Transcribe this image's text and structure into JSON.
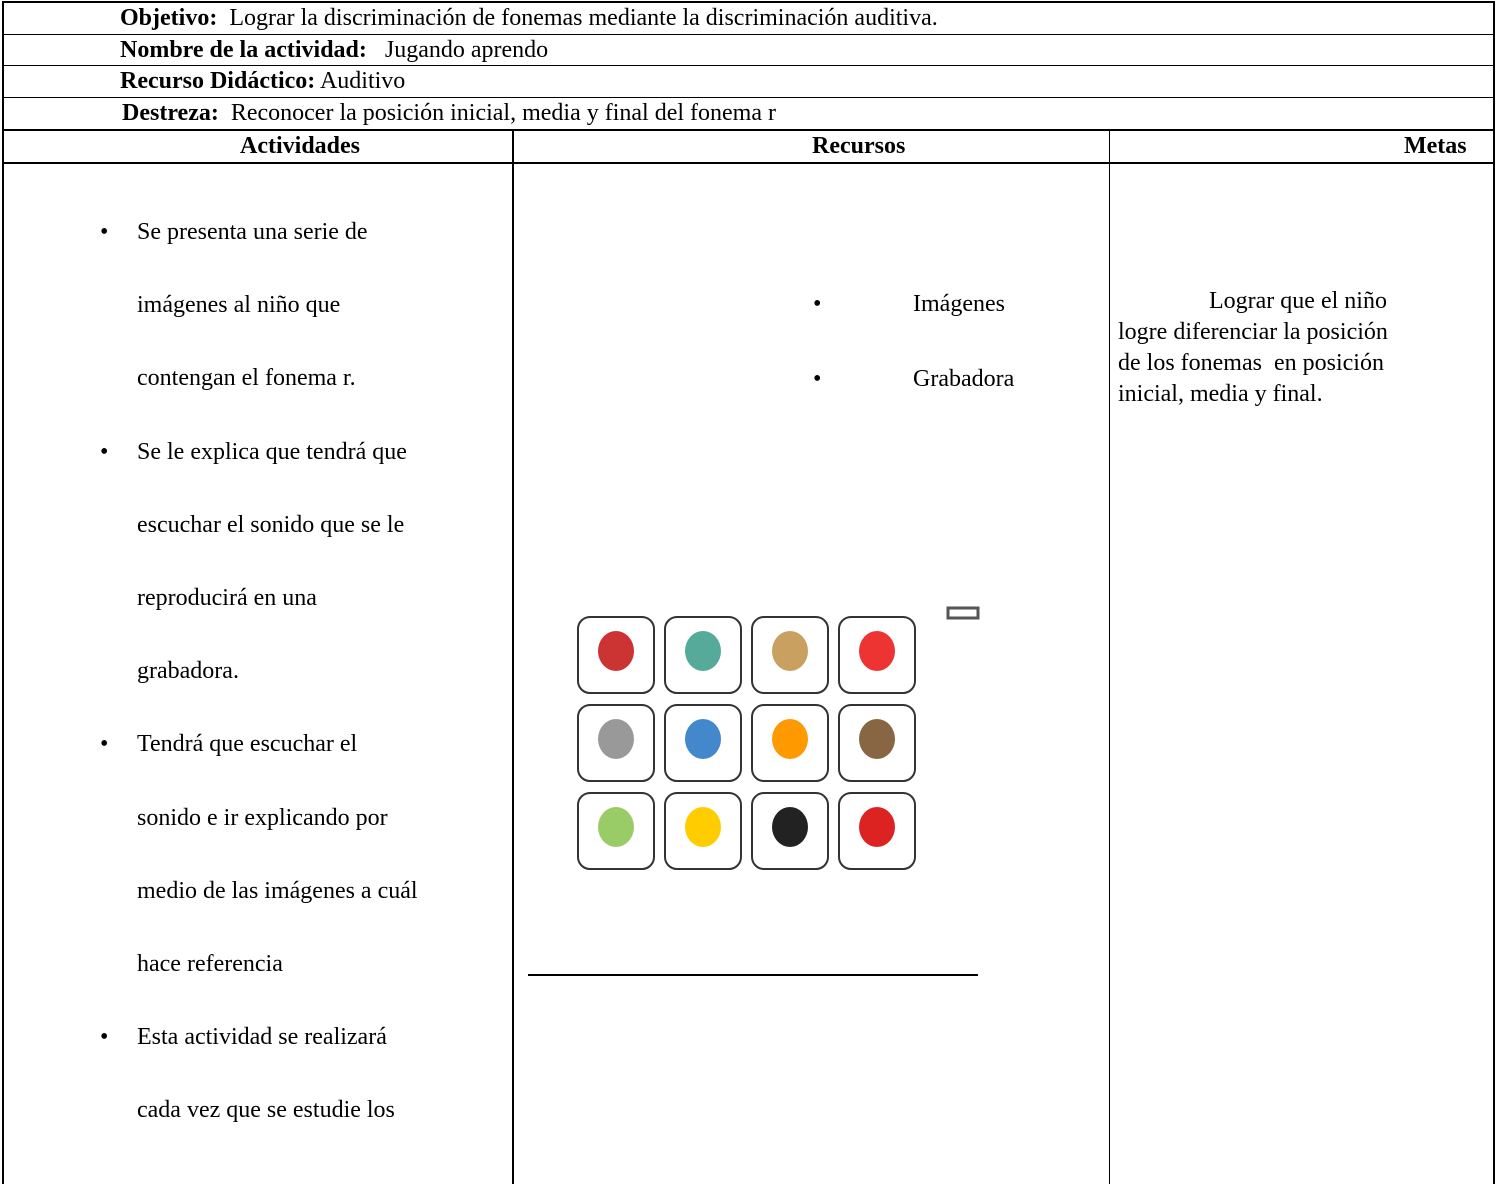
{
  "header": {
    "objetivo": {
      "label": "Objetivo:",
      "text": "Lograr la discriminación de fonemas mediante la discriminación auditiva."
    },
    "nombre": {
      "label": "Nombre de la actividad:",
      "text": "Jugando aprendo"
    },
    "recurso": {
      "label": "Recurso Didáctico:",
      "text": "Auditivo"
    },
    "destreza": {
      "label": "Destreza:",
      "text": "Reconocer la posición inicial, media y final del fonema r"
    }
  },
  "table": {
    "columns": [
      "Actividades",
      "Recursos",
      "Metas"
    ],
    "actividades": [
      [
        "Se presenta una serie de",
        "imágenes al niño que",
        "contengan el fonema r."
      ],
      [
        "Se le explica que tendrá que",
        "escuchar el sonido que se le",
        "reproducirá en una",
        "grabadora."
      ],
      [
        "Tendrá que escuchar el",
        "sonido e ir explicando por",
        "medio de las imágenes a cuál",
        "hace referencia"
      ],
      [
        "Esta actividad se realizará",
        "cada vez que se estudie los"
      ]
    ],
    "recursos": [
      "Imágenes",
      "Grabadora"
    ],
    "metas": [
      "Lograr que el niño",
      "logre diferenciar la posición",
      "de los fonemas  en posición",
      "inicial, media y final."
    ]
  }
}
